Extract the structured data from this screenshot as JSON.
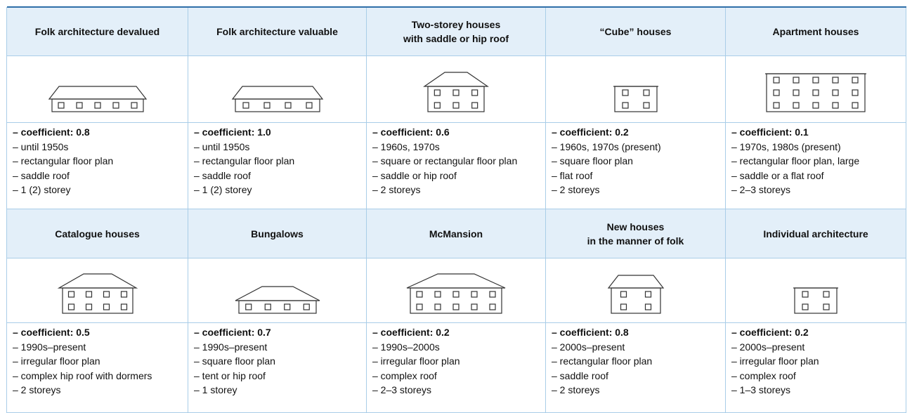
{
  "sections": [
    {
      "cells": [
        {
          "title": [
            "Folk architecture devalued"
          ],
          "details": [
            "– coefficient: 0.8",
            "– until 1950s",
            "– rectangular floor plan",
            "– saddle roof",
            "– 1 (2) storey"
          ]
        },
        {
          "title": [
            "Folk architecture valuable"
          ],
          "details": [
            "– coefficient: 1.0",
            "– until 1950s",
            "– rectangular floor plan",
            "– saddle roof",
            "– 1 (2) storey"
          ]
        },
        {
          "title": [
            "Two-storey houses",
            "with saddle or hip roof"
          ],
          "details": [
            "– coefficient: 0.6",
            "– 1960s, 1970s",
            "– square or rectangular floor plan",
            "– saddle or hip roof",
            "– 2 storeys"
          ]
        },
        {
          "title": [
            "“Cube” houses"
          ],
          "details": [
            "– coefficient: 0.2",
            "– 1960s, 1970s (present)",
            "– square floor plan",
            "– flat roof",
            "– 2 storeys"
          ]
        },
        {
          "title": [
            "Apartment houses"
          ],
          "details": [
            "– coefficient: 0.1",
            "– 1970s, 1980s (present)",
            "– rectangular floor plan, large",
            "– saddle or a flat roof",
            "– 2–3 storeys"
          ]
        }
      ]
    },
    {
      "cells": [
        {
          "title": [
            "Catalogue houses"
          ],
          "details": [
            "– coefficient: 0.5",
            "– 1990s–present",
            "– irregular floor plan",
            "– complex hip roof with dormers",
            "– 2 storeys"
          ]
        },
        {
          "title": [
            "Bungalows"
          ],
          "details": [
            "– coefficient: 0.7",
            "– 1990s–present",
            "– square floor plan",
            "– tent or hip roof",
            "– 1 storey"
          ]
        },
        {
          "title": [
            "McMansion"
          ],
          "details": [
            "– coefficient: 0.2",
            "– 1990s–2000s",
            "– irregular floor plan",
            "– complex roof",
            "– 2–3 storeys"
          ]
        },
        {
          "title": [
            "New houses",
            "in the manner of folk"
          ],
          "details": [
            "– coefficient: 0.8",
            "– 2000s–present",
            "– rectangular floor plan",
            "– saddle roof",
            "– 2 storeys"
          ]
        },
        {
          "title": [
            "Individual architecture"
          ],
          "details": [
            "– coefficient: 0.2",
            "– 2000s–present",
            "– irregular floor plan",
            "– complex roof",
            "– 1–3 storeys"
          ]
        }
      ]
    }
  ]
}
